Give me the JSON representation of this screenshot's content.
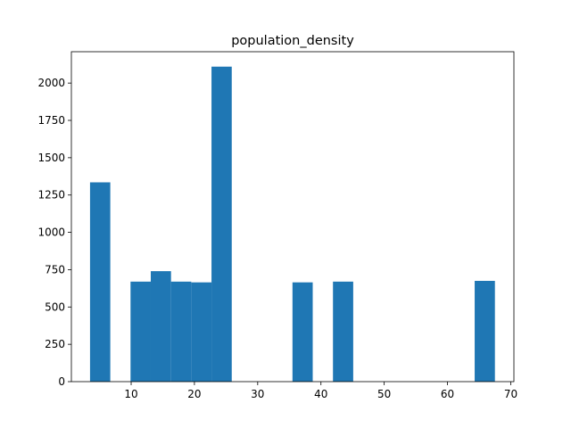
{
  "chart_data": {
    "type": "bar",
    "title": "population_density",
    "xlabel": "",
    "ylabel": "",
    "xlim": [
      0.55,
      70.5
    ],
    "ylim": [
      0,
      2210
    ],
    "grid": false,
    "color": "#1f77b4",
    "x_ticks": [
      10,
      20,
      30,
      40,
      50,
      60,
      70
    ],
    "y_ticks": [
      0,
      250,
      500,
      750,
      1000,
      1250,
      1500,
      1750,
      2000
    ],
    "bins": [
      {
        "x0": 3.5,
        "x1": 6.7,
        "value": 1335
      },
      {
        "x0": 6.7,
        "x1": 9.9,
        "value": 0
      },
      {
        "x0": 9.9,
        "x1": 13.1,
        "value": 670
      },
      {
        "x0": 13.1,
        "x1": 16.3,
        "value": 740
      },
      {
        "x0": 16.3,
        "x1": 19.5,
        "value": 670
      },
      {
        "x0": 19.5,
        "x1": 22.7,
        "value": 665
      },
      {
        "x0": 22.7,
        "x1": 25.9,
        "value": 2110
      },
      {
        "x0": 25.9,
        "x1": 29.1,
        "value": 0
      },
      {
        "x0": 29.1,
        "x1": 32.3,
        "value": 0
      },
      {
        "x0": 32.3,
        "x1": 35.5,
        "value": 0
      },
      {
        "x0": 35.5,
        "x1": 38.7,
        "value": 665
      },
      {
        "x0": 38.7,
        "x1": 41.9,
        "value": 0
      },
      {
        "x0": 41.9,
        "x1": 45.1,
        "value": 670
      },
      {
        "x0": 45.1,
        "x1": 48.3,
        "value": 0
      },
      {
        "x0": 48.3,
        "x1": 51.5,
        "value": 0
      },
      {
        "x0": 51.5,
        "x1": 54.7,
        "value": 0
      },
      {
        "x0": 54.7,
        "x1": 57.9,
        "value": 0
      },
      {
        "x0": 57.9,
        "x1": 61.1,
        "value": 0
      },
      {
        "x0": 61.1,
        "x1": 64.3,
        "value": 0
      },
      {
        "x0": 64.3,
        "x1": 67.5,
        "value": 675
      }
    ]
  }
}
